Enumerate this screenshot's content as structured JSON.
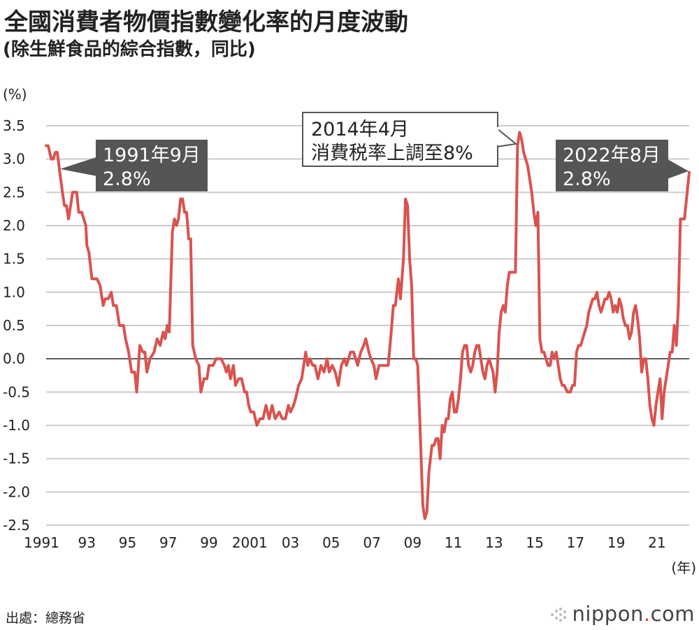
{
  "header": {
    "title": "全國消費者物價指數變化率的月度波動",
    "subtitle": "(除生鮮食品的綜合指數，同比)"
  },
  "footer": {
    "source": "出處：總務省",
    "logo_text": "nippon",
    "logo_dot": ".",
    "logo_tld": "com"
  },
  "colors": {
    "line": "#d9534f",
    "grid": "#cccccc",
    "zero_line": "#222222",
    "callout_dark": "#555555",
    "text": "#222222"
  },
  "chart_data": {
    "type": "line",
    "ylabel": "(%)",
    "xlabel": "(年)",
    "ylim": [
      -2.5,
      3.5
    ],
    "yticks": [
      "3.5",
      "3.0",
      "2.5",
      "2.0",
      "1.5",
      "1.0",
      "0.5",
      "0.0",
      "-0.5",
      "-1.0",
      "-1.5",
      "-2.0",
      "-2.5"
    ],
    "xticks": [
      "1991",
      "93",
      "95",
      "97",
      "99",
      "2001",
      "03",
      "05",
      "07",
      "09",
      "11",
      "13",
      "15",
      "17",
      "19",
      "21"
    ],
    "xtick_years": [
      1991,
      1993,
      1995,
      1997,
      1999,
      2001,
      2003,
      2005,
      2007,
      2009,
      2011,
      2013,
      2015,
      2017,
      2019,
      2021
    ],
    "xlim": [
      1991.0,
      2022.583
    ],
    "grid": true,
    "series": [
      {
        "points": [
          [
            1991.0,
            3.2
          ],
          [
            1991.1,
            3.2
          ],
          [
            1991.25,
            3.0
          ],
          [
            1991.35,
            3.0
          ],
          [
            1991.45,
            3.1
          ],
          [
            1991.55,
            3.1
          ],
          [
            1991.67,
            2.8
          ],
          [
            1991.8,
            2.5
          ],
          [
            1991.9,
            2.3
          ],
          [
            1992.0,
            2.3
          ],
          [
            1992.1,
            2.1
          ],
          [
            1992.2,
            2.3
          ],
          [
            1992.3,
            2.5
          ],
          [
            1992.5,
            2.5
          ],
          [
            1992.6,
            2.2
          ],
          [
            1992.75,
            2.2
          ],
          [
            1992.85,
            2.1
          ],
          [
            1992.95,
            2.0
          ],
          [
            1993.0,
            1.7
          ],
          [
            1993.1,
            1.6
          ],
          [
            1993.25,
            1.2
          ],
          [
            1993.5,
            1.2
          ],
          [
            1993.65,
            1.1
          ],
          [
            1993.8,
            0.8
          ],
          [
            1993.9,
            0.9
          ],
          [
            1994.05,
            0.9
          ],
          [
            1994.2,
            1.0
          ],
          [
            1994.3,
            0.8
          ],
          [
            1994.45,
            0.8
          ],
          [
            1994.6,
            0.5
          ],
          [
            1994.8,
            0.5
          ],
          [
            1994.9,
            0.3
          ],
          [
            1995.05,
            0.1
          ],
          [
            1995.2,
            -0.2
          ],
          [
            1995.35,
            -0.2
          ],
          [
            1995.45,
            -0.5
          ],
          [
            1995.6,
            0.2
          ],
          [
            1995.75,
            0.1
          ],
          [
            1995.85,
            0.1
          ],
          [
            1995.95,
            -0.2
          ],
          [
            1996.1,
            0.0
          ],
          [
            1996.3,
            0.1
          ],
          [
            1996.45,
            0.3
          ],
          [
            1996.6,
            0.2
          ],
          [
            1996.75,
            0.4
          ],
          [
            1996.85,
            0.3
          ],
          [
            1996.95,
            0.5
          ],
          [
            1997.05,
            0.4
          ],
          [
            1997.2,
            1.9
          ],
          [
            1997.3,
            2.1
          ],
          [
            1997.4,
            2.0
          ],
          [
            1997.5,
            2.1
          ],
          [
            1997.6,
            2.4
          ],
          [
            1997.7,
            2.4
          ],
          [
            1997.8,
            2.2
          ],
          [
            1997.9,
            2.2
          ],
          [
            1998.0,
            1.8
          ],
          [
            1998.1,
            1.8
          ],
          [
            1998.2,
            0.2
          ],
          [
            1998.35,
            0.0
          ],
          [
            1998.5,
            -0.1
          ],
          [
            1998.6,
            -0.5
          ],
          [
            1998.75,
            -0.3
          ],
          [
            1998.9,
            -0.3
          ],
          [
            1999.0,
            -0.1
          ],
          [
            1999.2,
            -0.1
          ],
          [
            1999.35,
            0.0
          ],
          [
            1999.6,
            0.0
          ],
          [
            1999.75,
            -0.1
          ],
          [
            1999.85,
            -0.2
          ],
          [
            1999.95,
            -0.1
          ],
          [
            2000.05,
            -0.3
          ],
          [
            2000.2,
            -0.1
          ],
          [
            2000.3,
            -0.4
          ],
          [
            2000.45,
            -0.3
          ],
          [
            2000.6,
            -0.3
          ],
          [
            2000.75,
            -0.5
          ],
          [
            2000.85,
            -0.5
          ],
          [
            2000.95,
            -0.7
          ],
          [
            2001.05,
            -0.8
          ],
          [
            2001.2,
            -0.8
          ],
          [
            2001.35,
            -1.0
          ],
          [
            2001.5,
            -0.9
          ],
          [
            2001.65,
            -0.9
          ],
          [
            2001.8,
            -0.7
          ],
          [
            2001.95,
            -0.9
          ],
          [
            2002.1,
            -0.7
          ],
          [
            2002.25,
            -0.9
          ],
          [
            2002.45,
            -0.8
          ],
          [
            2002.6,
            -0.9
          ],
          [
            2002.75,
            -0.9
          ],
          [
            2002.9,
            -0.7
          ],
          [
            2003.0,
            -0.8
          ],
          [
            2003.15,
            -0.7
          ],
          [
            2003.25,
            -0.6
          ],
          [
            2003.4,
            -0.4
          ],
          [
            2003.55,
            -0.3
          ],
          [
            2003.65,
            -0.1
          ],
          [
            2003.75,
            0.1
          ],
          [
            2003.85,
            -0.1
          ],
          [
            2003.95,
            0.0
          ],
          [
            2004.1,
            -0.1
          ],
          [
            2004.2,
            -0.1
          ],
          [
            2004.35,
            -0.3
          ],
          [
            2004.5,
            -0.1
          ],
          [
            2004.65,
            -0.2
          ],
          [
            2004.8,
            0.0
          ],
          [
            2004.9,
            -0.2
          ],
          [
            2005.05,
            -0.1
          ],
          [
            2005.2,
            -0.2
          ],
          [
            2005.35,
            -0.4
          ],
          [
            2005.5,
            -0.1
          ],
          [
            2005.65,
            0.0
          ],
          [
            2005.75,
            -0.1
          ],
          [
            2005.85,
            0.0
          ],
          [
            2005.95,
            0.1
          ],
          [
            2006.1,
            0.1
          ],
          [
            2006.2,
            0.0
          ],
          [
            2006.3,
            -0.1
          ],
          [
            2006.45,
            0.1
          ],
          [
            2006.6,
            0.2
          ],
          [
            2006.7,
            0.3
          ],
          [
            2006.85,
            0.1
          ],
          [
            2006.95,
            0.0
          ],
          [
            2007.1,
            -0.1
          ],
          [
            2007.2,
            -0.3
          ],
          [
            2007.35,
            -0.1
          ],
          [
            2007.5,
            -0.1
          ],
          [
            2007.8,
            -0.1
          ],
          [
            2007.95,
            0.4
          ],
          [
            2008.05,
            0.8
          ],
          [
            2008.15,
            0.8
          ],
          [
            2008.3,
            1.2
          ],
          [
            2008.4,
            0.9
          ],
          [
            2008.55,
            1.5
          ],
          [
            2008.65,
            2.4
          ],
          [
            2008.75,
            2.3
          ],
          [
            2008.85,
            1.5
          ],
          [
            2008.95,
            1.1
          ],
          [
            2009.05,
            0.0
          ],
          [
            2009.15,
            0.0
          ],
          [
            2009.25,
            -0.1
          ],
          [
            2009.35,
            -0.9
          ],
          [
            2009.5,
            -2.2
          ],
          [
            2009.6,
            -2.4
          ],
          [
            2009.7,
            -2.3
          ],
          [
            2009.8,
            -1.7
          ],
          [
            2009.95,
            -1.3
          ],
          [
            2010.05,
            -1.3
          ],
          [
            2010.15,
            -1.2
          ],
          [
            2010.25,
            -1.2
          ],
          [
            2010.35,
            -1.5
          ],
          [
            2010.45,
            -1.0
          ],
          [
            2010.55,
            -1.1
          ],
          [
            2010.65,
            -0.9
          ],
          [
            2010.75,
            -0.9
          ],
          [
            2010.85,
            -0.6
          ],
          [
            2010.95,
            -0.5
          ],
          [
            2011.05,
            -0.8
          ],
          [
            2011.15,
            -0.8
          ],
          [
            2011.25,
            -0.6
          ],
          [
            2011.35,
            -0.3
          ],
          [
            2011.45,
            0.1
          ],
          [
            2011.55,
            0.2
          ],
          [
            2011.65,
            0.2
          ],
          [
            2011.75,
            -0.1
          ],
          [
            2011.85,
            -0.2
          ],
          [
            2011.95,
            -0.1
          ],
          [
            2012.05,
            0.1
          ],
          [
            2012.15,
            0.2
          ],
          [
            2012.25,
            0.2
          ],
          [
            2012.35,
            0.0
          ],
          [
            2012.45,
            -0.2
          ],
          [
            2012.55,
            -0.3
          ],
          [
            2012.65,
            -0.1
          ],
          [
            2012.75,
            0.0
          ],
          [
            2012.85,
            -0.1
          ],
          [
            2012.95,
            -0.2
          ],
          [
            2013.05,
            -0.5
          ],
          [
            2013.15,
            -0.2
          ],
          [
            2013.25,
            0.4
          ],
          [
            2013.35,
            0.7
          ],
          [
            2013.45,
            0.8
          ],
          [
            2013.55,
            0.7
          ],
          [
            2013.65,
            1.1
          ],
          [
            2013.75,
            1.3
          ],
          [
            2013.85,
            1.3
          ],
          [
            2014.05,
            1.3
          ],
          [
            2014.15,
            3.2
          ],
          [
            2014.25,
            3.4
          ],
          [
            2014.35,
            3.3
          ],
          [
            2014.45,
            3.1
          ],
          [
            2014.55,
            3.0
          ],
          [
            2014.65,
            2.9
          ],
          [
            2014.75,
            2.7
          ],
          [
            2014.85,
            2.5
          ],
          [
            2014.95,
            2.2
          ],
          [
            2015.05,
            2.0
          ],
          [
            2015.15,
            2.2
          ],
          [
            2015.25,
            0.3
          ],
          [
            2015.35,
            0.1
          ],
          [
            2015.45,
            0.1
          ],
          [
            2015.55,
            0.0
          ],
          [
            2015.65,
            -0.1
          ],
          [
            2015.75,
            -0.1
          ],
          [
            2015.85,
            0.1
          ],
          [
            2015.95,
            0.0
          ],
          [
            2016.05,
            0.1
          ],
          [
            2016.15,
            -0.1
          ],
          [
            2016.25,
            -0.3
          ],
          [
            2016.35,
            -0.4
          ],
          [
            2016.45,
            -0.4
          ],
          [
            2016.6,
            -0.5
          ],
          [
            2016.75,
            -0.5
          ],
          [
            2016.85,
            -0.4
          ],
          [
            2016.95,
            -0.4
          ],
          [
            2017.05,
            0.1
          ],
          [
            2017.15,
            0.2
          ],
          [
            2017.25,
            0.2
          ],
          [
            2017.35,
            0.3
          ],
          [
            2017.45,
            0.4
          ],
          [
            2017.55,
            0.5
          ],
          [
            2017.65,
            0.7
          ],
          [
            2017.75,
            0.8
          ],
          [
            2017.85,
            0.9
          ],
          [
            2017.95,
            0.9
          ],
          [
            2018.05,
            1.0
          ],
          [
            2018.15,
            0.8
          ],
          [
            2018.25,
            0.7
          ],
          [
            2018.35,
            0.8
          ],
          [
            2018.45,
            0.9
          ],
          [
            2018.55,
            0.9
          ],
          [
            2018.65,
            1.0
          ],
          [
            2018.75,
            0.9
          ],
          [
            2018.85,
            0.7
          ],
          [
            2018.95,
            0.8
          ],
          [
            2019.05,
            0.7
          ],
          [
            2019.15,
            0.9
          ],
          [
            2019.25,
            0.8
          ],
          [
            2019.35,
            0.6
          ],
          [
            2019.45,
            0.5
          ],
          [
            2019.55,
            0.5
          ],
          [
            2019.65,
            0.3
          ],
          [
            2019.75,
            0.4
          ],
          [
            2019.85,
            0.7
          ],
          [
            2019.95,
            0.8
          ],
          [
            2020.05,
            0.6
          ],
          [
            2020.15,
            0.3
          ],
          [
            2020.25,
            -0.2
          ],
          [
            2020.35,
            0.0
          ],
          [
            2020.45,
            0.0
          ],
          [
            2020.55,
            -0.3
          ],
          [
            2020.65,
            -0.7
          ],
          [
            2020.75,
            -0.9
          ],
          [
            2020.85,
            -1.0
          ],
          [
            2020.95,
            -0.7
          ],
          [
            2021.05,
            -0.5
          ],
          [
            2021.15,
            -0.3
          ],
          [
            2021.25,
            -0.9
          ],
          [
            2021.35,
            -0.5
          ],
          [
            2021.45,
            -0.3
          ],
          [
            2021.55,
            -0.1
          ],
          [
            2021.65,
            0.1
          ],
          [
            2021.75,
            0.1
          ],
          [
            2021.85,
            0.5
          ],
          [
            2021.95,
            0.2
          ],
          [
            2022.05,
            0.8
          ],
          [
            2022.15,
            2.1
          ],
          [
            2022.25,
            2.1
          ],
          [
            2022.35,
            2.1
          ],
          [
            2022.45,
            2.4
          ],
          [
            2022.583,
            2.8
          ]
        ]
      }
    ],
    "annotations": [
      {
        "text_line1": "1991年9月",
        "text_line2": "2.8%",
        "style": "dark"
      },
      {
        "text_line1": "2014年4月",
        "text_line2": "消費税率上調至8%",
        "style": "outline"
      },
      {
        "text_line1": "2022年8月",
        "text_line2": "2.8%",
        "style": "dark"
      }
    ]
  }
}
